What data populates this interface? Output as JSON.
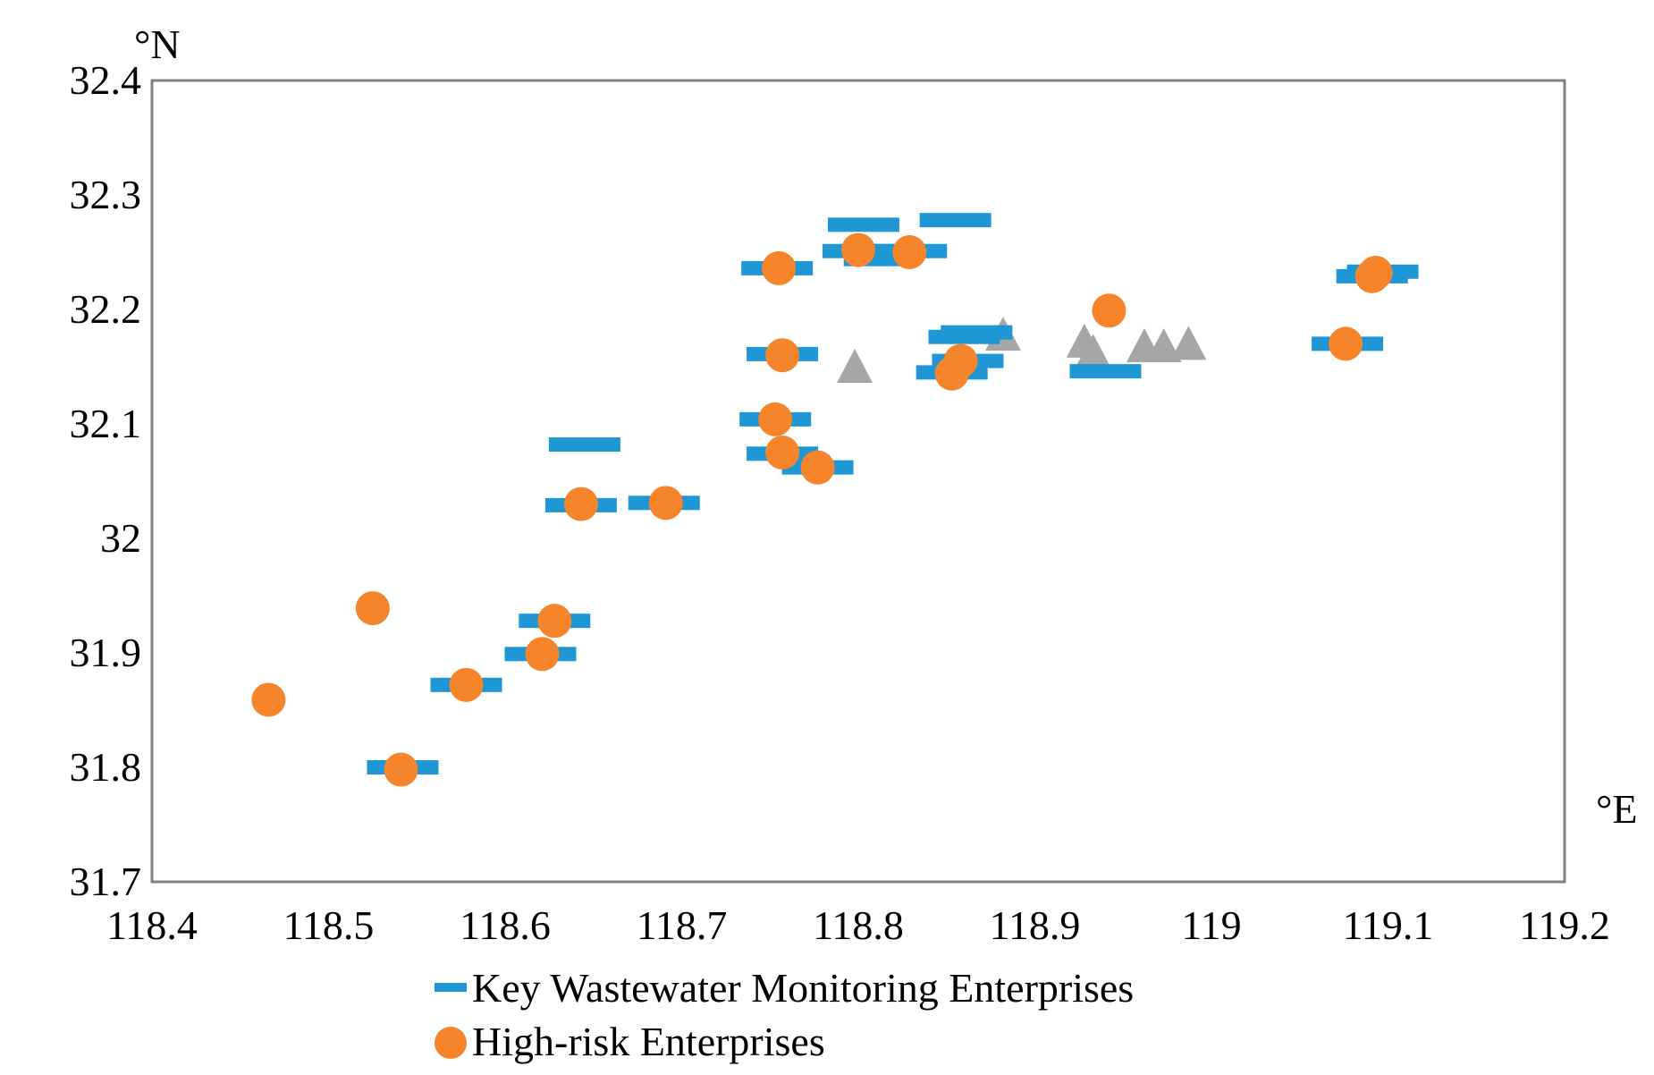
{
  "chart_data": {
    "type": "scatter",
    "title": "",
    "xlabel": "°E",
    "ylabel": "°N",
    "xlim": [
      118.4,
      119.2
    ],
    "ylim": [
      31.7,
      32.4
    ],
    "x_ticks": [
      "118.4",
      "118.5",
      "118.6",
      "118.7",
      "118.8",
      "118.9",
      "119",
      "119.1",
      "119.2"
    ],
    "y_ticks": [
      "31.7",
      "31.8",
      "31.9",
      "32",
      "32.1",
      "32.2",
      "32.3",
      "32.4"
    ],
    "grid": false,
    "legend_position": "bottom",
    "colors": {
      "key_wastewater": "#1f97d4",
      "high_risk": "#f5842b",
      "other": "#a6a6a6",
      "axis": "#808080"
    },
    "series": [
      {
        "name": "Key Wastewater Monitoring Enterprises",
        "marker": "dash",
        "in_legend": true,
        "points": [
          [
            118.542,
            31.8
          ],
          [
            118.578,
            31.872
          ],
          [
            118.62,
            31.899
          ],
          [
            118.628,
            31.928
          ],
          [
            118.643,
            32.029
          ],
          [
            118.645,
            32.082
          ],
          [
            118.69,
            32.031
          ],
          [
            118.754,
            32.236
          ],
          [
            118.757,
            32.161
          ],
          [
            118.753,
            32.104
          ],
          [
            118.757,
            32.074
          ],
          [
            118.777,
            32.062
          ],
          [
            118.803,
            32.274
          ],
          [
            118.8,
            32.251
          ],
          [
            118.812,
            32.244
          ],
          [
            118.83,
            32.251
          ],
          [
            118.855,
            32.278
          ],
          [
            118.86,
            32.176
          ],
          [
            118.867,
            32.18
          ],
          [
            118.862,
            32.155
          ],
          [
            118.853,
            32.145
          ],
          [
            118.94,
            32.146
          ],
          [
            119.077,
            32.17
          ],
          [
            119.091,
            32.229
          ],
          [
            119.097,
            32.233
          ]
        ]
      },
      {
        "name": "High-risk Enterprises",
        "marker": "circle",
        "in_legend": true,
        "points": [
          [
            118.466,
            31.859
          ],
          [
            118.525,
            31.939
          ],
          [
            118.541,
            31.798
          ],
          [
            118.578,
            31.872
          ],
          [
            118.621,
            31.899
          ],
          [
            118.628,
            31.928
          ],
          [
            118.643,
            32.03
          ],
          [
            118.691,
            32.031
          ],
          [
            118.755,
            32.236
          ],
          [
            118.757,
            32.16
          ],
          [
            118.753,
            32.104
          ],
          [
            118.757,
            32.075
          ],
          [
            118.777,
            32.062
          ],
          [
            118.8,
            32.252
          ],
          [
            118.829,
            32.25
          ],
          [
            118.858,
            32.155
          ],
          [
            118.853,
            32.144
          ],
          [
            118.942,
            32.199
          ],
          [
            119.076,
            32.17
          ],
          [
            119.091,
            32.229
          ],
          [
            119.093,
            32.232
          ]
        ]
      },
      {
        "name": "",
        "marker": "triangle",
        "in_legend": false,
        "points": [
          [
            118.798,
            32.15
          ],
          [
            118.882,
            32.178
          ],
          [
            118.928,
            32.172
          ],
          [
            118.933,
            32.163
          ],
          [
            118.962,
            32.168
          ],
          [
            118.973,
            32.168
          ],
          [
            118.987,
            32.17
          ]
        ]
      }
    ]
  }
}
